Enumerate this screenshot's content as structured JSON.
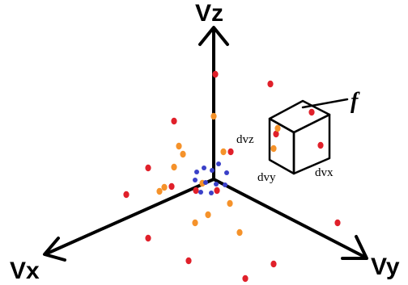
{
  "axes": {
    "vz_label": "Vz",
    "vx_label": "Vx",
    "vy_label": "Vy"
  },
  "volume_element": {
    "f_label": "f",
    "dvz_label": "dvz",
    "dvy_label": "dvy",
    "dvx_label": "dvx"
  },
  "colors": {
    "axis": "#000000",
    "red_particle": "#e0202a",
    "orange_particle": "#f5922a",
    "blue_particle": "#3a40c8"
  }
}
